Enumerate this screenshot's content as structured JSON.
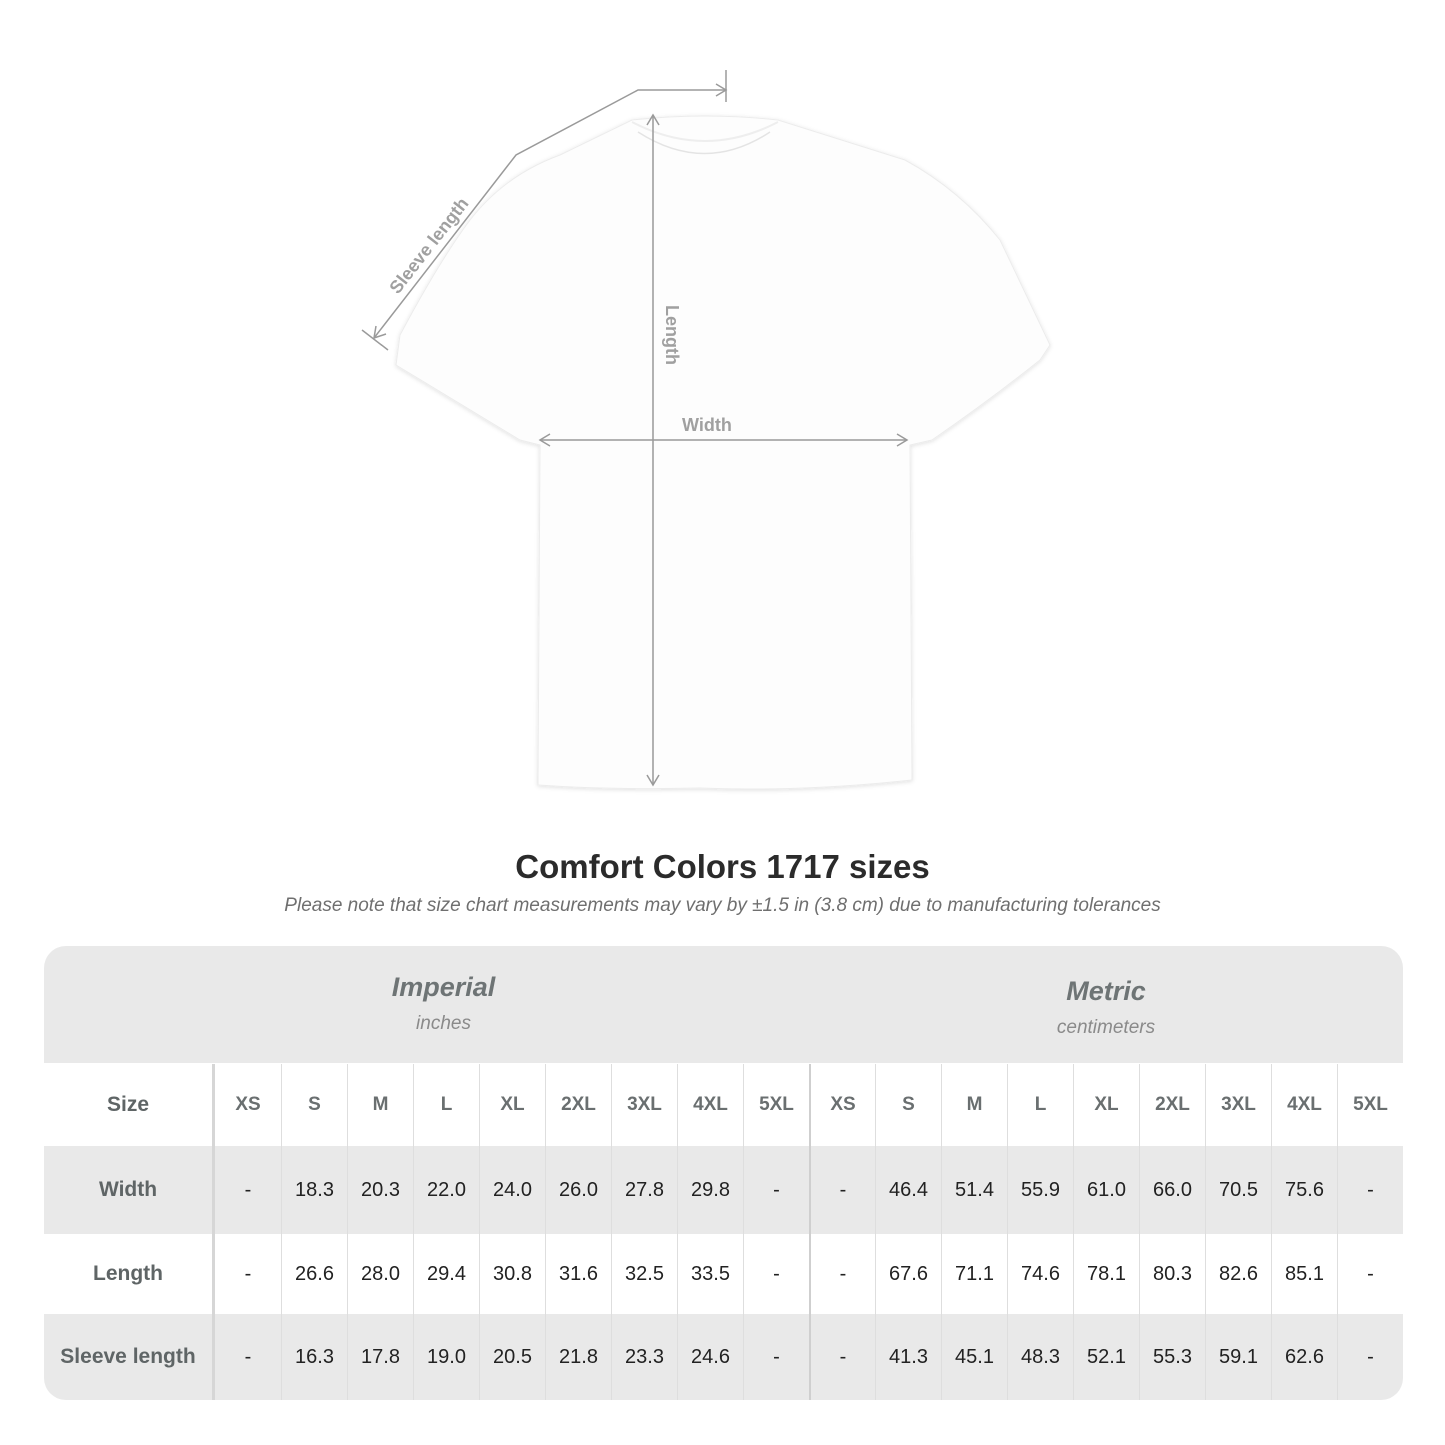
{
  "diagram": {
    "labels": {
      "sleeve": "Sleeve length",
      "length": "Length",
      "width": "Width"
    },
    "line_color": "#9a9a9a"
  },
  "header": {
    "title": "Comfort Colors 1717 sizes",
    "note": "Please note that size chart measurements may vary by ±1.5 in (3.8 cm) due to manufacturing tolerances"
  },
  "table": {
    "imperial": {
      "name": "Imperial",
      "unit": "inches"
    },
    "metric": {
      "name": "Metric",
      "unit": "centimeters"
    },
    "size_label": "Size",
    "sizes": [
      "XS",
      "S",
      "M",
      "L",
      "XL",
      "2XL",
      "3XL",
      "4XL",
      "5XL"
    ],
    "rows": [
      {
        "label": "Width",
        "imperial": [
          "-",
          "18.3",
          "20.3",
          "22.0",
          "24.0",
          "26.0",
          "27.8",
          "29.8",
          "-"
        ],
        "metric": [
          "-",
          "46.4",
          "51.4",
          "55.9",
          "61.0",
          "66.0",
          "70.5",
          "75.6",
          "-"
        ]
      },
      {
        "label": "Length",
        "imperial": [
          "-",
          "26.6",
          "28.0",
          "29.4",
          "30.8",
          "31.6",
          "32.5",
          "33.5",
          "-"
        ],
        "metric": [
          "-",
          "67.6",
          "71.1",
          "74.6",
          "78.1",
          "80.3",
          "82.6",
          "85.1",
          "-"
        ]
      },
      {
        "label": "Sleeve length",
        "imperial": [
          "-",
          "16.3",
          "17.8",
          "19.0",
          "20.5",
          "21.8",
          "23.3",
          "24.6",
          "-"
        ],
        "metric": [
          "-",
          "41.3",
          "45.1",
          "48.3",
          "52.1",
          "55.3",
          "59.1",
          "62.6",
          "-"
        ]
      }
    ],
    "colors": {
      "band": "#e9e9e9",
      "label_text": "#5f6566"
    }
  }
}
